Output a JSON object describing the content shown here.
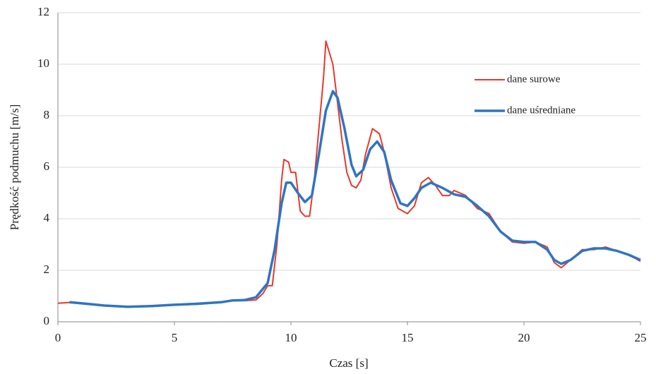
{
  "chart_data": {
    "type": "line",
    "xlabel": "Czas [s]",
    "ylabel": "Prędkość podmuchu [m/s]",
    "xlim": [
      0,
      25
    ],
    "xticks": [
      0,
      5,
      10,
      15,
      20,
      25
    ],
    "ylim": [
      0,
      12
    ],
    "yticks": [
      0,
      2,
      4,
      6,
      8,
      10,
      12
    ],
    "grid": true,
    "legend": "upper right",
    "series": [
      {
        "name": "dane surowe",
        "color": "#e8392a",
        "width": 2,
        "x": [
          0,
          0.5,
          1,
          2,
          3,
          4,
          5,
          6,
          7,
          7.5,
          8,
          8.5,
          8.8,
          9,
          9.2,
          9.4,
          9.6,
          9.7,
          9.9,
          10,
          10.2,
          10.4,
          10.6,
          10.8,
          11,
          11.2,
          11.4,
          11.5,
          11.6,
          11.8,
          12,
          12.2,
          12.4,
          12.6,
          12.8,
          13,
          13.2,
          13.5,
          13.8,
          14,
          14.3,
          14.6,
          15,
          15.3,
          15.6,
          15.9,
          16.2,
          16.5,
          16.8,
          17,
          17.5,
          18,
          18.5,
          19,
          19.5,
          20,
          20.5,
          21,
          21.3,
          21.6,
          22,
          22.5,
          23,
          23.5,
          24,
          24.5,
          25
        ],
        "values": [
          0.72,
          0.75,
          0.7,
          0.62,
          0.57,
          0.6,
          0.65,
          0.68,
          0.75,
          0.82,
          0.82,
          0.85,
          1.1,
          1.4,
          1.4,
          3.0,
          5.5,
          6.3,
          6.2,
          5.8,
          5.8,
          4.3,
          4.1,
          4.1,
          5.5,
          7.5,
          9.5,
          10.9,
          10.6,
          10.0,
          8.5,
          7.0,
          5.8,
          5.3,
          5.2,
          5.5,
          6.5,
          7.5,
          7.3,
          6.6,
          5.2,
          4.4,
          4.2,
          4.5,
          5.4,
          5.6,
          5.3,
          4.9,
          4.9,
          5.1,
          4.9,
          4.4,
          4.2,
          3.5,
          3.1,
          3.05,
          3.1,
          2.9,
          2.3,
          2.1,
          2.4,
          2.8,
          2.8,
          2.9,
          2.75,
          2.6,
          2.35
        ]
      },
      {
        "name": "dane uśredniane",
        "color": "#2e75c3",
        "width": 3.5,
        "x": [
          0.5,
          1,
          2,
          3,
          4,
          5,
          6,
          7,
          7.5,
          8,
          8.5,
          9,
          9.3,
          9.6,
          9.8,
          10,
          10.3,
          10.6,
          10.9,
          11.2,
          11.5,
          11.8,
          12,
          12.3,
          12.6,
          12.8,
          13.1,
          13.4,
          13.7,
          14,
          14.3,
          14.7,
          15,
          15.3,
          15.6,
          16,
          16.5,
          17,
          17.5,
          18,
          18.5,
          19,
          19.5,
          20,
          20.5,
          21,
          21.3,
          21.6,
          22,
          22.5,
          23,
          23.5,
          24,
          24.5,
          25
        ],
        "values": [
          0.76,
          0.72,
          0.63,
          0.58,
          0.61,
          0.66,
          0.7,
          0.76,
          0.83,
          0.84,
          0.95,
          1.5,
          2.8,
          4.6,
          5.4,
          5.4,
          5.0,
          4.65,
          4.9,
          6.5,
          8.2,
          8.95,
          8.7,
          7.5,
          6.1,
          5.65,
          5.9,
          6.7,
          7.0,
          6.6,
          5.5,
          4.6,
          4.5,
          4.8,
          5.2,
          5.4,
          5.2,
          4.95,
          4.85,
          4.5,
          4.1,
          3.5,
          3.15,
          3.1,
          3.1,
          2.8,
          2.4,
          2.25,
          2.4,
          2.75,
          2.85,
          2.85,
          2.75,
          2.6,
          2.4
        ]
      }
    ]
  }
}
